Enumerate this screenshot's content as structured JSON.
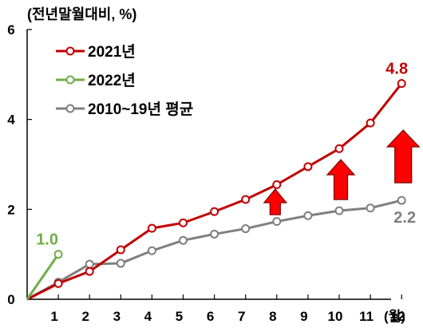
{
  "chart_data": {
    "type": "line",
    "unit_label": "(전년말월대비, %)",
    "x_unit_label": "(월)",
    "x": [
      0,
      1,
      2,
      3,
      4,
      5,
      6,
      7,
      8,
      9,
      10,
      11,
      12
    ],
    "xticks": [
      "1",
      "2",
      "3",
      "4",
      "5",
      "6",
      "7",
      "8",
      "9",
      "10",
      "11",
      "12"
    ],
    "ylim": [
      0,
      6
    ],
    "yticks": [
      "0",
      "2",
      "4",
      "6"
    ],
    "ytick_values": [
      0,
      2,
      4,
      6
    ],
    "grid": false,
    "legend_position": "top-left",
    "series": [
      {
        "name": "2021년",
        "color": "#c00000",
        "x": [
          0,
          1,
          2,
          3,
          4,
          5,
          6,
          7,
          8,
          9,
          10,
          11,
          12
        ],
        "values": [
          0,
          0.35,
          0.62,
          1.1,
          1.58,
          1.7,
          1.95,
          2.22,
          2.55,
          2.95,
          3.35,
          3.92,
          4.8
        ]
      },
      {
        "name": "2022년",
        "color": "#70ad47",
        "x": [
          0,
          1
        ],
        "values": [
          0,
          1.0
        ]
      },
      {
        "name": "2010~19년 평균",
        "color": "#7f7f7f",
        "x": [
          0,
          1,
          2,
          3,
          4,
          5,
          6,
          7,
          8,
          9,
          10,
          11,
          12
        ],
        "values": [
          0,
          0.38,
          0.78,
          0.8,
          1.08,
          1.31,
          1.45,
          1.57,
          1.73,
          1.86,
          1.97,
          2.03,
          2.2
        ]
      }
    ],
    "annotations": [
      {
        "text": "4.8",
        "series": 0,
        "color": "#c00000"
      },
      {
        "text": "1.0",
        "series": 1,
        "color": "#70ad47"
      },
      {
        "text": "2.2",
        "series": 2,
        "color": "#7f7f7f"
      }
    ],
    "gap_arrows": [
      {
        "month": 8,
        "color": "#ff0000"
      },
      {
        "month": 10,
        "color": "#ff0000"
      },
      {
        "month": 12,
        "color": "#ff0000"
      }
    ]
  }
}
